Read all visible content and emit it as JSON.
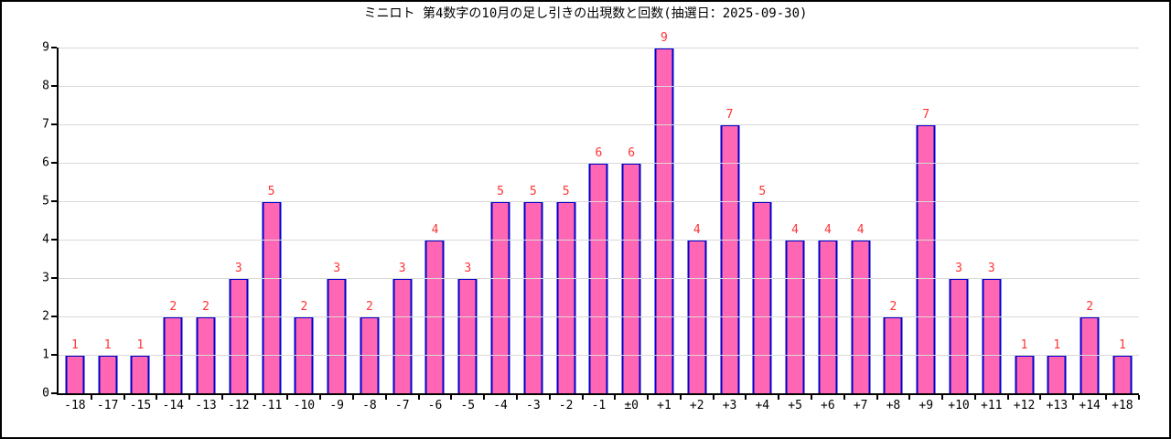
{
  "title": "ミニロト 第4数字の10月の足し引きの出現数と回数(抽選日：2025-09-30)",
  "colors": {
    "background": "#ffffff",
    "figure_border": "#000000",
    "axis": "#000000",
    "grid": "#d9d9d9",
    "bar_fill": "#ff66b3",
    "bar_border": "#0000cc",
    "value_label": "#ff3333",
    "tick_label": "#000000"
  },
  "chart_data": {
    "type": "bar",
    "title": "ミニロト 第4数字の10月の足し引きの出現数と回数(抽選日：2025-09-30)",
    "categories": [
      "-18",
      "-17",
      "-15",
      "-14",
      "-13",
      "-12",
      "-11",
      "-10",
      "-9",
      "-8",
      "-7",
      "-6",
      "-5",
      "-4",
      "-3",
      "-2",
      "-1",
      "±0",
      "+1",
      "+2",
      "+3",
      "+4",
      "+5",
      "+6",
      "+7",
      "+8",
      "+9",
      "+10",
      "+11",
      "+12",
      "+13",
      "+14",
      "+18"
    ],
    "values": [
      1,
      1,
      1,
      2,
      2,
      3,
      5,
      2,
      3,
      2,
      3,
      4,
      3,
      5,
      5,
      5,
      6,
      6,
      9,
      4,
      7,
      5,
      4,
      4,
      4,
      2,
      7,
      3,
      3,
      1,
      1,
      2,
      1
    ],
    "xlabel": "",
    "ylabel": "",
    "ylim": [
      0,
      9
    ],
    "yticks": [
      0,
      1,
      2,
      3,
      4,
      5,
      6,
      7,
      8,
      9
    ],
    "grid": true,
    "legend_position": "none",
    "value_labels": true,
    "value_labels_color": "#ff3333"
  }
}
